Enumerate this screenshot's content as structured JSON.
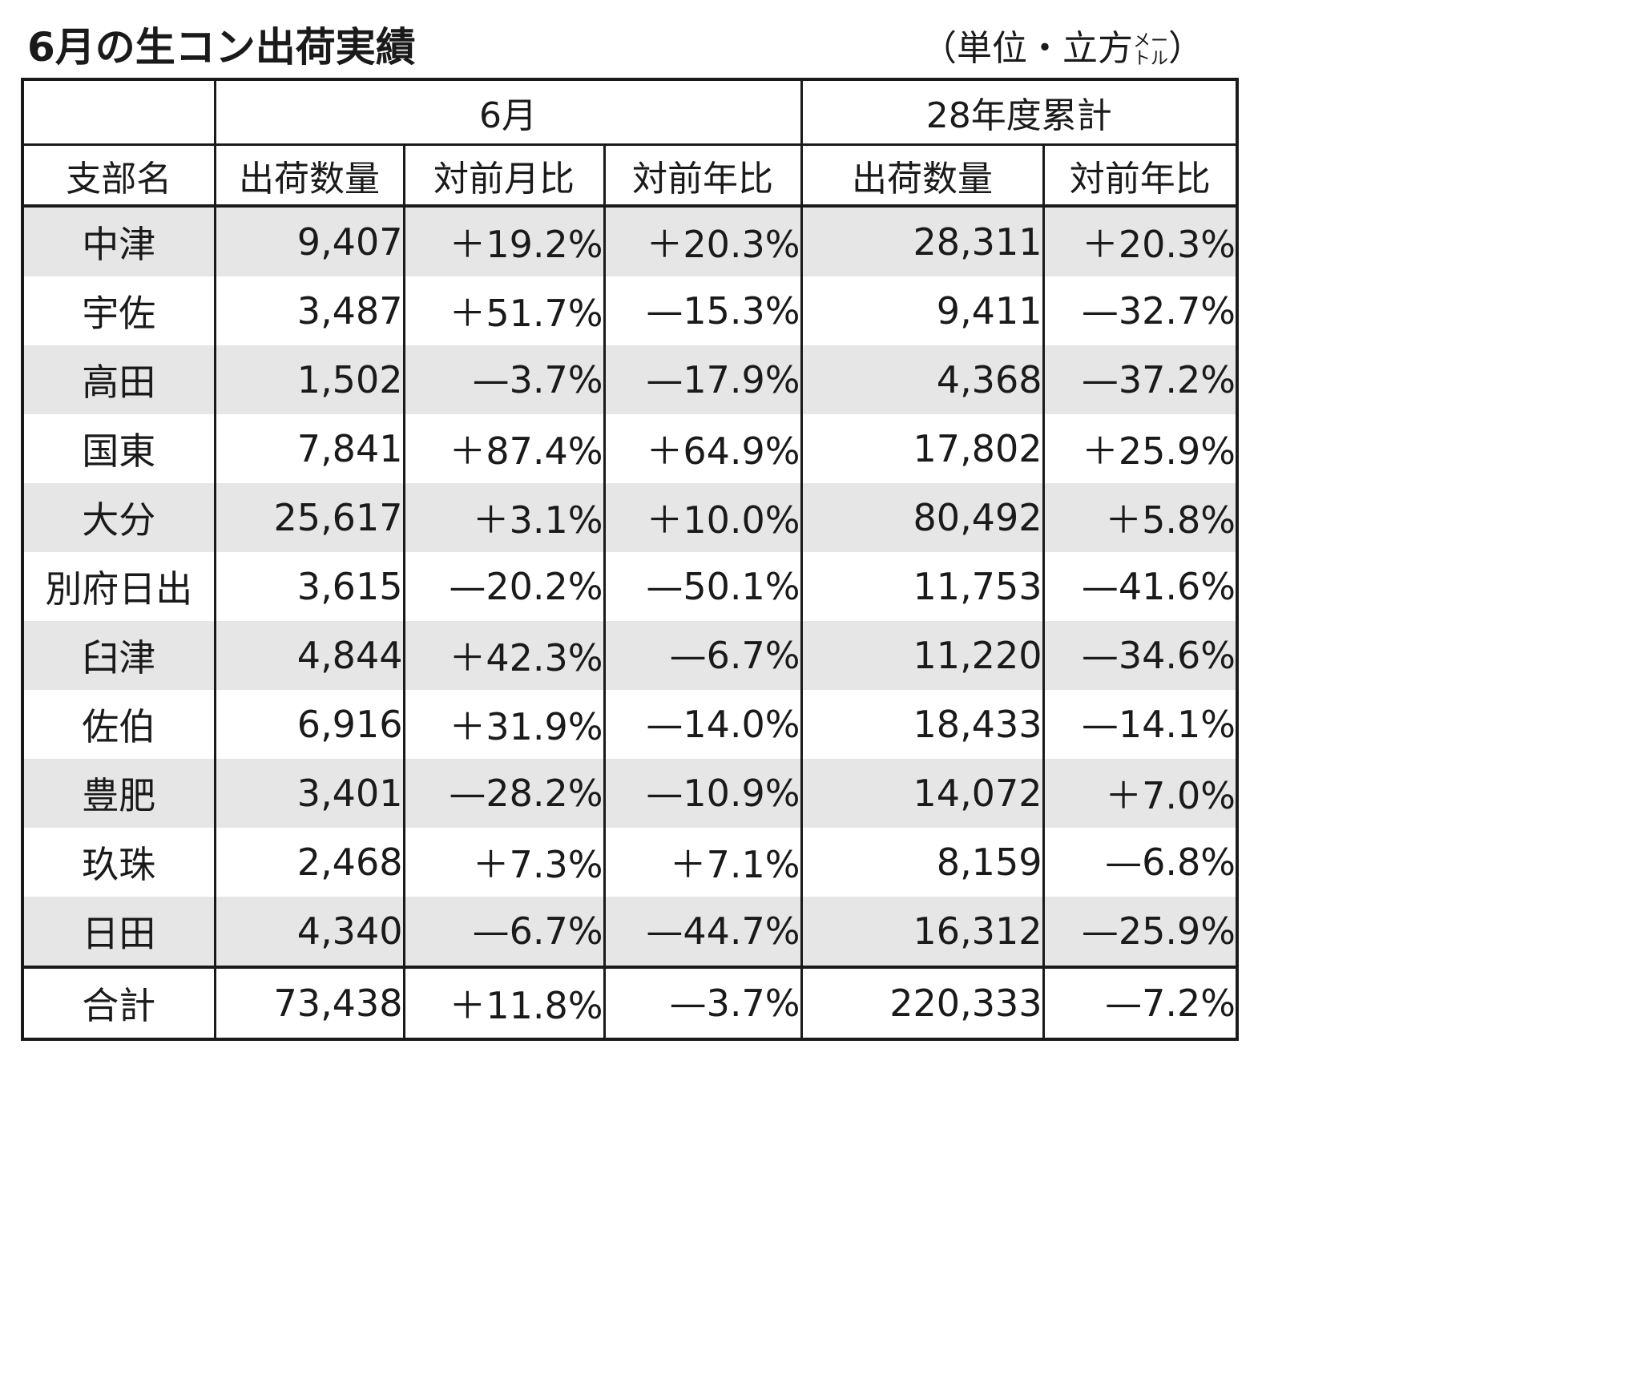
{
  "title": "6月の生コン出荷実績",
  "unit": {
    "prefix": "（単位・立方",
    "small_top": "メー",
    "small_bottom": "トル",
    "suffix": "）"
  },
  "table": {
    "group_headers": [
      "",
      "6月",
      "28年度累計"
    ],
    "column_headers": [
      "支部名",
      "出荷数量",
      "対前月比",
      "対前年比",
      "出荷数量",
      "対前年比"
    ],
    "rows": [
      [
        "中津",
        "9,407",
        "＋19.2%",
        "＋20.3%",
        "28,311",
        "＋20.3%"
      ],
      [
        "宇佐",
        "3,487",
        "＋51.7%",
        "—15.3%",
        "9,411",
        "—32.7%"
      ],
      [
        "高田",
        "1,502",
        "—3.7%",
        "—17.9%",
        "4,368",
        "—37.2%"
      ],
      [
        "国東",
        "7,841",
        "＋87.4%",
        "＋64.9%",
        "17,802",
        "＋25.9%"
      ],
      [
        "大分",
        "25,617",
        "＋3.1%",
        "＋10.0%",
        "80,492",
        "＋5.8%"
      ],
      [
        "別府日出",
        "3,615",
        "—20.2%",
        "—50.1%",
        "11,753",
        "—41.6%"
      ],
      [
        "臼津",
        "4,844",
        "＋42.3%",
        "—6.7%",
        "11,220",
        "—34.6%"
      ],
      [
        "佐伯",
        "6,916",
        "＋31.9%",
        "—14.0%",
        "18,433",
        "—14.1%"
      ],
      [
        "豊肥",
        "3,401",
        "—28.2%",
        "—10.9%",
        "14,072",
        "＋7.0%"
      ],
      [
        "玖珠",
        "2,468",
        "＋7.3%",
        "＋7.1%",
        "8,159",
        "—6.8%"
      ],
      [
        "日田",
        "4,340",
        "—6.7%",
        "—44.7%",
        "16,312",
        "—25.9%"
      ]
    ],
    "total": [
      "合計",
      "73,438",
      "＋11.8%",
      "—3.7%",
      "220,333",
      "—7.2%"
    ]
  },
  "colors": {
    "shade": "#e6e6e6",
    "border": "#1a1a1a"
  }
}
